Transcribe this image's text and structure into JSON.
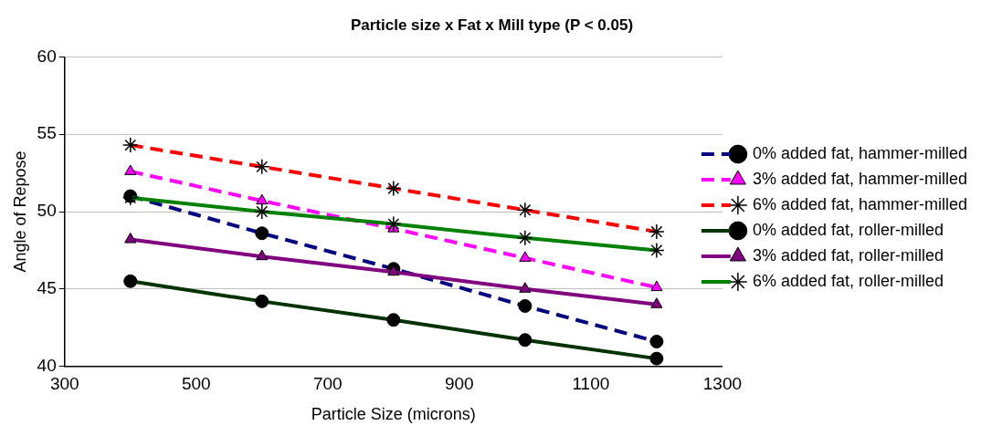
{
  "chart_data": {
    "type": "line",
    "title": "Particle size x Fat x Mill type (P < 0.05)",
    "xlabel": "Particle Size (microns)",
    "ylabel": "Angle of Repose",
    "x": [
      400,
      600,
      800,
      1000,
      1200
    ],
    "series": [
      {
        "name": "0% added fat, hammer-milled",
        "color": "#000080",
        "values": [
          51.0,
          48.6,
          46.3,
          43.9,
          41.6
        ],
        "marker": "circle",
        "line_style": "dashed"
      },
      {
        "name": "3% added fat, hammer-milled",
        "color": "#ff00ff",
        "values": [
          52.6,
          50.7,
          48.9,
          47.0,
          45.1
        ],
        "marker": "triangle",
        "line_style": "dashed"
      },
      {
        "name": "6% added fat, hammer-milled",
        "color": "#ff0000",
        "values": [
          54.3,
          52.9,
          51.5,
          50.1,
          48.7
        ],
        "marker": "cross",
        "line_style": "dashed"
      },
      {
        "name": "0% added fat, roller-milled",
        "color": "#003300",
        "values": [
          45.5,
          44.2,
          43.0,
          41.7,
          40.5
        ],
        "marker": "circle",
        "line_style": "solid"
      },
      {
        "name": "3% added fat, roller-milled",
        "color": "#800080",
        "values": [
          48.2,
          47.1,
          46.1,
          45.0,
          44.0
        ],
        "marker": "triangle",
        "line_style": "solid"
      },
      {
        "name": "6% added fat, roller-milled",
        "color": "#008000",
        "values": [
          50.9,
          50.0,
          49.2,
          48.3,
          47.5
        ],
        "marker": "cross",
        "line_style": "solid"
      }
    ],
    "xlim": [
      300,
      1300
    ],
    "xticks": [
      300,
      500,
      700,
      900,
      1100,
      1300
    ],
    "ylim": [
      40,
      60
    ],
    "yticks": [
      40,
      45,
      50,
      55,
      60
    ],
    "grid": "y",
    "legend": "right"
  }
}
